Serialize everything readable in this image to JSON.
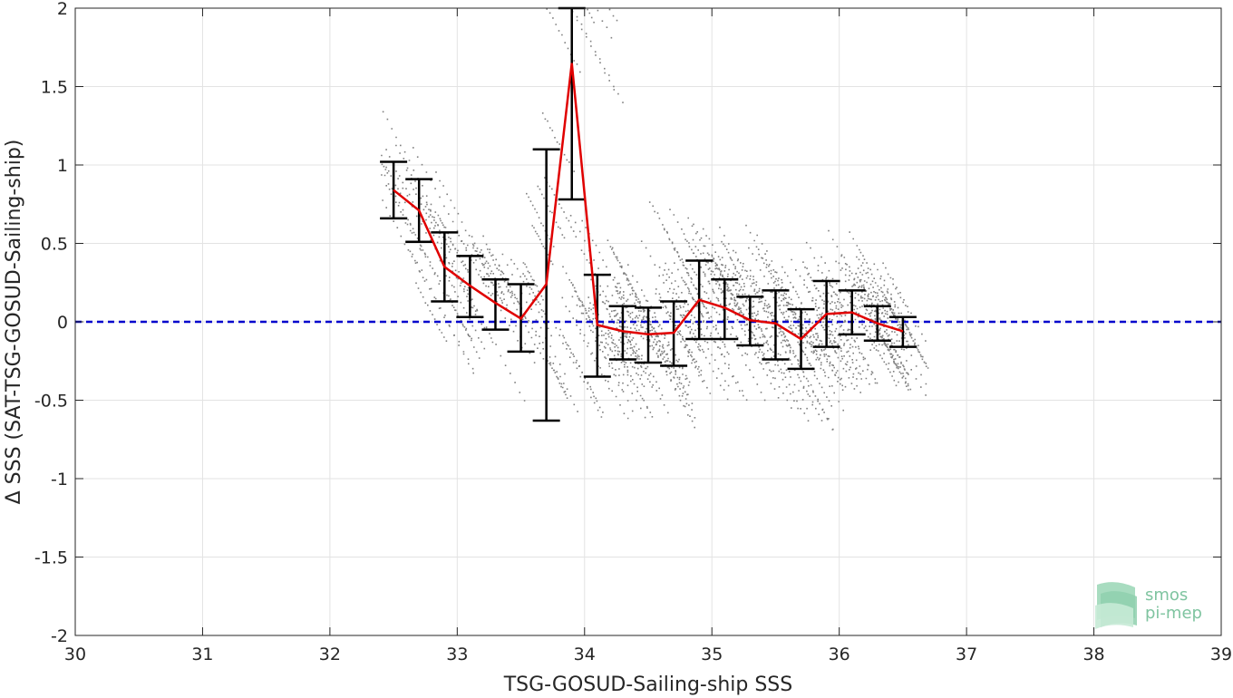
{
  "chart_data": {
    "type": "scatter",
    "xlabel": "TSG-GOSUD-Sailing-ship SSS",
    "ylabel": "Δ SSS (SAT-TSG-GOSUD-Sailing-ship)",
    "xlim": [
      30,
      39
    ],
    "ylim": [
      -2,
      2
    ],
    "x_ticks": [
      "30",
      "31",
      "32",
      "33",
      "34",
      "35",
      "36",
      "37",
      "38",
      "39"
    ],
    "y_ticks": [
      "-2",
      "-1.5",
      "-1",
      "-0.5",
      "0",
      "0.5",
      "1",
      "1.5",
      "2"
    ],
    "grid": true,
    "reference_line": {
      "y": 0,
      "style": "dashed",
      "color": "#0000cc"
    },
    "series": [
      {
        "type": "line",
        "color": "#e00000",
        "x": [
          32.5,
          32.7,
          32.9,
          33.1,
          33.3,
          33.5,
          33.7,
          33.9,
          34.1,
          34.3,
          34.5,
          34.7,
          34.9,
          35.1,
          35.3,
          35.5,
          35.7,
          35.9,
          36.1,
          36.3,
          36.5
        ],
        "y": [
          0.84,
          0.71,
          0.35,
          0.23,
          0.12,
          0.02,
          0.24,
          1.65,
          -0.02,
          -0.06,
          -0.08,
          -0.07,
          0.14,
          0.09,
          0.01,
          -0.01,
          -0.11,
          0.05,
          0.06,
          -0.01,
          -0.06
        ]
      },
      {
        "type": "errorbar",
        "color": "#000000",
        "x": [
          32.5,
          32.7,
          32.9,
          33.1,
          33.3,
          33.5,
          33.7,
          33.9,
          34.1,
          34.3,
          34.5,
          34.7,
          34.9,
          35.1,
          35.3,
          35.5,
          35.7,
          35.9,
          36.1,
          36.3,
          36.5
        ],
        "low": [
          0.66,
          0.51,
          0.13,
          0.03,
          -0.05,
          -0.19,
          -0.63,
          0.78,
          -0.35,
          -0.24,
          -0.26,
          -0.28,
          -0.11,
          -0.11,
          -0.15,
          -0.24,
          -0.3,
          -0.16,
          -0.08,
          -0.12,
          -0.16
        ],
        "high": [
          1.02,
          0.91,
          0.57,
          0.42,
          0.27,
          0.24,
          1.1,
          2.0,
          0.3,
          0.1,
          0.09,
          0.13,
          0.39,
          0.27,
          0.16,
          0.2,
          0.08,
          0.26,
          0.2,
          0.1,
          0.03
        ]
      }
    ],
    "scatter_points_color": "#808080"
  },
  "logo": {
    "line1": "smos",
    "line2": "pi-mep"
  }
}
